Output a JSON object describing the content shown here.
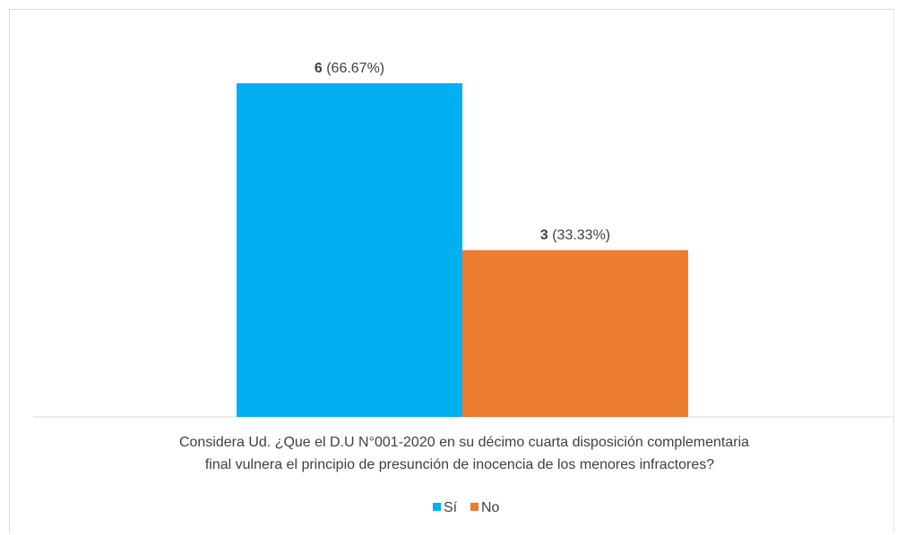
{
  "chart_data": {
    "type": "bar",
    "categories": [
      "Considera Ud. ¿Que el D.U N°001-2020 en su décimo cuarta disposición complementaria final vulnera el principio de presunción de inocencia de los menores infractores?"
    ],
    "category_label_lines": [
      "Considera Ud. ¿Que el D.U N°001-2020 en su décimo cuarta disposición complementaria",
      "final vulnera el principio de presunción de inocencia de los menores infractores?"
    ],
    "series": [
      {
        "name": "Sí",
        "values": [
          6
        ],
        "percent_label": "(66.67%)",
        "value_label": "6",
        "color": "#00B0F0"
      },
      {
        "name": "No",
        "values": [
          3
        ],
        "percent_label": "(33.33%)",
        "value_label": "3",
        "color": "#ED7D31"
      }
    ],
    "ylim": [
      0,
      6.5
    ],
    "grid": false,
    "legend_position": "bottom",
    "title": "",
    "xlabel": "",
    "ylabel": ""
  }
}
